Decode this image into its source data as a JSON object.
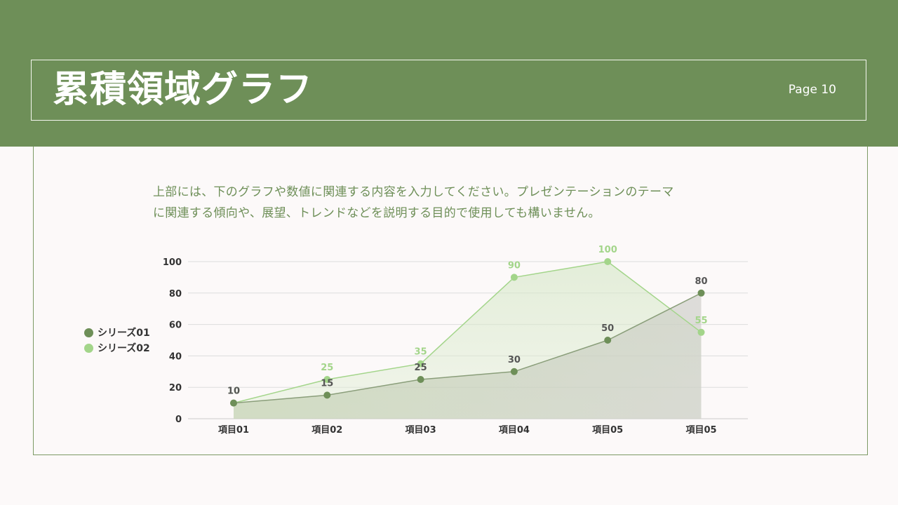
{
  "slide": {
    "title": "累積領域グラフ",
    "page": "Page 10",
    "description_lines": [
      "上部には、下のグラフや数値に関連する内容を入力してください。プレゼンテーションのテーマ",
      "に関連する傾向や、展望、トレンドなどを説明する目的で使用しても構いません。"
    ]
  },
  "colors": {
    "header": "#6e8f58",
    "series01": "#6e8f58",
    "series02": "#a3d58a",
    "background": "#fcf9f9"
  },
  "chart_data": {
    "type": "area",
    "categories": [
      "項目01",
      "項目02",
      "項目03",
      "項目04",
      "項目05",
      "項目05"
    ],
    "series": [
      {
        "name": "シリーズ01",
        "values": [
          10,
          15,
          25,
          30,
          50,
          80
        ]
      },
      {
        "name": "シリーズ02",
        "values": [
          10,
          25,
          35,
          90,
          100,
          55
        ]
      }
    ],
    "y_ticks": [
      0,
      20,
      40,
      60,
      80,
      100
    ],
    "ylim": [
      0,
      100
    ],
    "grid": true,
    "legend_position": "left",
    "data_labels": true
  }
}
